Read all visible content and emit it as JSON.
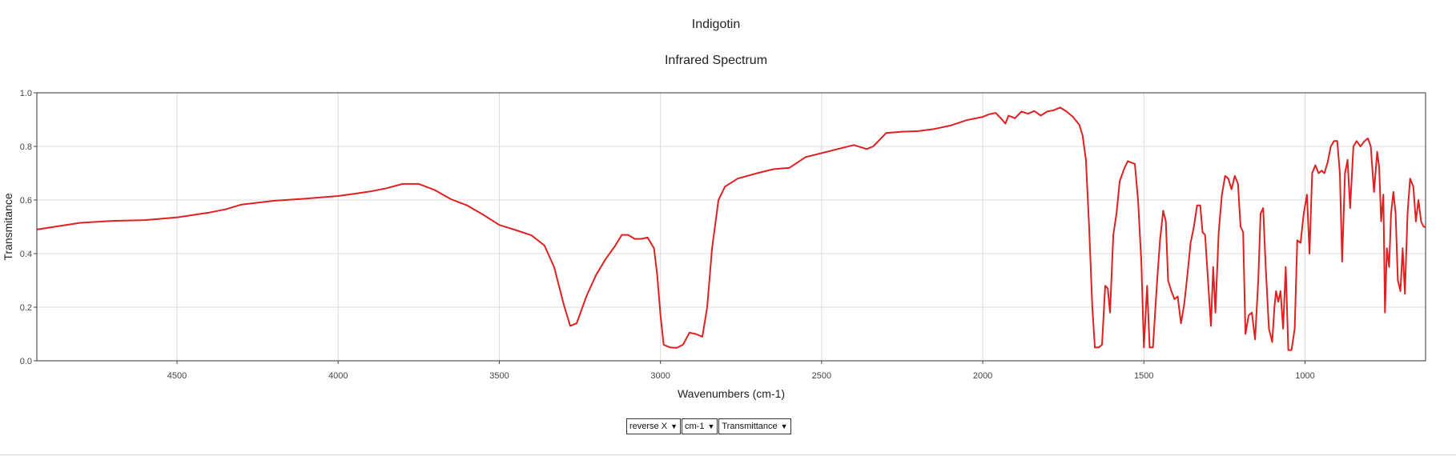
{
  "chart_data": {
    "type": "line",
    "title": "Indigotin",
    "subtitle": "Infrared Spectrum",
    "xlabel": "Wavenumbers (cm-1)",
    "ylabel": "Transmitance",
    "xlim": [
      4935,
      626
    ],
    "ylim": [
      0,
      1
    ],
    "x_reversed": true,
    "grid": true,
    "x_ticks": [
      4500,
      4000,
      3500,
      3000,
      2500,
      2000,
      1500,
      1000
    ],
    "y_ticks": [
      0.0,
      0.2,
      0.4,
      0.6,
      0.8,
      1.0
    ],
    "series": [
      {
        "color": "#e02020",
        "points": [
          [
            4935,
            0.49
          ],
          [
            4800,
            0.515
          ],
          [
            4700,
            0.522
          ],
          [
            4600,
            0.525
          ],
          [
            4500,
            0.535
          ],
          [
            4400,
            0.553
          ],
          [
            4350,
            0.565
          ],
          [
            4300,
            0.583
          ],
          [
            4200,
            0.597
          ],
          [
            4100,
            0.605
          ],
          [
            4000,
            0.615
          ],
          [
            3950,
            0.623
          ],
          [
            3900,
            0.632
          ],
          [
            3850,
            0.644
          ],
          [
            3800,
            0.66
          ],
          [
            3750,
            0.66
          ],
          [
            3700,
            0.637
          ],
          [
            3650,
            0.603
          ],
          [
            3600,
            0.58
          ],
          [
            3550,
            0.545
          ],
          [
            3500,
            0.507
          ],
          [
            3450,
            0.488
          ],
          [
            3400,
            0.468
          ],
          [
            3360,
            0.43
          ],
          [
            3330,
            0.35
          ],
          [
            3300,
            0.21
          ],
          [
            3280,
            0.13
          ],
          [
            3260,
            0.14
          ],
          [
            3230,
            0.24
          ],
          [
            3200,
            0.32
          ],
          [
            3170,
            0.38
          ],
          [
            3140,
            0.43
          ],
          [
            3120,
            0.47
          ],
          [
            3100,
            0.47
          ],
          [
            3080,
            0.455
          ],
          [
            3060,
            0.455
          ],
          [
            3040,
            0.46
          ],
          [
            3020,
            0.42
          ],
          [
            3010,
            0.32
          ],
          [
            3000,
            0.17
          ],
          [
            2990,
            0.06
          ],
          [
            2970,
            0.05
          ],
          [
            2950,
            0.048
          ],
          [
            2930,
            0.06
          ],
          [
            2910,
            0.105
          ],
          [
            2890,
            0.1
          ],
          [
            2870,
            0.09
          ],
          [
            2855,
            0.2
          ],
          [
            2840,
            0.42
          ],
          [
            2820,
            0.6
          ],
          [
            2800,
            0.65
          ],
          [
            2760,
            0.68
          ],
          [
            2700,
            0.7
          ],
          [
            2650,
            0.715
          ],
          [
            2600,
            0.72
          ],
          [
            2550,
            0.76
          ],
          [
            2500,
            0.775
          ],
          [
            2450,
            0.79
          ],
          [
            2400,
            0.805
          ],
          [
            2360,
            0.79
          ],
          [
            2340,
            0.8
          ],
          [
            2300,
            0.85
          ],
          [
            2250,
            0.855
          ],
          [
            2200,
            0.857
          ],
          [
            2150,
            0.865
          ],
          [
            2100,
            0.878
          ],
          [
            2050,
            0.898
          ],
          [
            2000,
            0.91
          ],
          [
            1980,
            0.92
          ],
          [
            1960,
            0.925
          ],
          [
            1940,
            0.9
          ],
          [
            1930,
            0.885
          ],
          [
            1920,
            0.915
          ],
          [
            1900,
            0.905
          ],
          [
            1880,
            0.93
          ],
          [
            1860,
            0.922
          ],
          [
            1840,
            0.932
          ],
          [
            1820,
            0.915
          ],
          [
            1800,
            0.93
          ],
          [
            1780,
            0.935
          ],
          [
            1760,
            0.945
          ],
          [
            1740,
            0.93
          ],
          [
            1720,
            0.91
          ],
          [
            1700,
            0.88
          ],
          [
            1690,
            0.84
          ],
          [
            1680,
            0.75
          ],
          [
            1670,
            0.5
          ],
          [
            1660,
            0.2
          ],
          [
            1652,
            0.05
          ],
          [
            1640,
            0.05
          ],
          [
            1630,
            0.06
          ],
          [
            1620,
            0.28
          ],
          [
            1612,
            0.27
          ],
          [
            1605,
            0.18
          ],
          [
            1595,
            0.47
          ],
          [
            1585,
            0.55
          ],
          [
            1575,
            0.67
          ],
          [
            1560,
            0.72
          ],
          [
            1550,
            0.745
          ],
          [
            1540,
            0.74
          ],
          [
            1528,
            0.735
          ],
          [
            1518,
            0.6
          ],
          [
            1508,
            0.37
          ],
          [
            1500,
            0.05
          ],
          [
            1490,
            0.28
          ],
          [
            1482,
            0.05
          ],
          [
            1472,
            0.05
          ],
          [
            1460,
            0.28
          ],
          [
            1450,
            0.45
          ],
          [
            1440,
            0.56
          ],
          [
            1432,
            0.52
          ],
          [
            1425,
            0.3
          ],
          [
            1415,
            0.26
          ],
          [
            1405,
            0.23
          ],
          [
            1395,
            0.24
          ],
          [
            1385,
            0.14
          ],
          [
            1375,
            0.21
          ],
          [
            1365,
            0.32
          ],
          [
            1355,
            0.44
          ],
          [
            1345,
            0.5
          ],
          [
            1335,
            0.58
          ],
          [
            1325,
            0.58
          ],
          [
            1318,
            0.48
          ],
          [
            1310,
            0.47
          ],
          [
            1300,
            0.28
          ],
          [
            1292,
            0.13
          ],
          [
            1285,
            0.35
          ],
          [
            1278,
            0.18
          ],
          [
            1268,
            0.48
          ],
          [
            1258,
            0.62
          ],
          [
            1248,
            0.69
          ],
          [
            1238,
            0.68
          ],
          [
            1228,
            0.64
          ],
          [
            1218,
            0.69
          ],
          [
            1208,
            0.66
          ],
          [
            1200,
            0.5
          ],
          [
            1192,
            0.48
          ],
          [
            1185,
            0.1
          ],
          [
            1175,
            0.17
          ],
          [
            1165,
            0.18
          ],
          [
            1155,
            0.08
          ],
          [
            1145,
            0.3
          ],
          [
            1138,
            0.55
          ],
          [
            1130,
            0.57
          ],
          [
            1122,
            0.35
          ],
          [
            1112,
            0.12
          ],
          [
            1102,
            0.07
          ],
          [
            1095,
            0.2
          ],
          [
            1090,
            0.26
          ],
          [
            1083,
            0.22
          ],
          [
            1076,
            0.26
          ],
          [
            1068,
            0.12
          ],
          [
            1060,
            0.35
          ],
          [
            1052,
            0.04
          ],
          [
            1042,
            0.04
          ],
          [
            1032,
            0.12
          ],
          [
            1024,
            0.45
          ],
          [
            1014,
            0.44
          ],
          [
            1004,
            0.55
          ],
          [
            994,
            0.62
          ],
          [
            986,
            0.4
          ],
          [
            978,
            0.7
          ],
          [
            968,
            0.73
          ],
          [
            958,
            0.7
          ],
          [
            948,
            0.71
          ],
          [
            940,
            0.7
          ],
          [
            930,
            0.74
          ],
          [
            920,
            0.8
          ],
          [
            910,
            0.82
          ],
          [
            900,
            0.82
          ],
          [
            892,
            0.7
          ],
          [
            885,
            0.37
          ],
          [
            876,
            0.7
          ],
          [
            868,
            0.75
          ],
          [
            860,
            0.57
          ],
          [
            850,
            0.8
          ],
          [
            840,
            0.82
          ],
          [
            828,
            0.8
          ],
          [
            815,
            0.82
          ],
          [
            805,
            0.83
          ],
          [
            796,
            0.8
          ],
          [
            786,
            0.63
          ],
          [
            776,
            0.78
          ],
          [
            770,
            0.72
          ],
          [
            764,
            0.52
          ],
          [
            757,
            0.62
          ],
          [
            752,
            0.18
          ],
          [
            746,
            0.42
          ],
          [
            739,
            0.35
          ],
          [
            733,
            0.55
          ],
          [
            726,
            0.63
          ],
          [
            719,
            0.55
          ],
          [
            712,
            0.3
          ],
          [
            704,
            0.26
          ],
          [
            697,
            0.42
          ],
          [
            690,
            0.25
          ],
          [
            682,
            0.55
          ],
          [
            674,
            0.68
          ],
          [
            664,
            0.65
          ],
          [
            656,
            0.52
          ],
          [
            648,
            0.6
          ],
          [
            640,
            0.52
          ],
          [
            632,
            0.5
          ],
          [
            626,
            0.5
          ]
        ]
      }
    ]
  },
  "controls": {
    "x_direction": "reverse X",
    "units": "cm-1",
    "mode": "Transmittance"
  }
}
